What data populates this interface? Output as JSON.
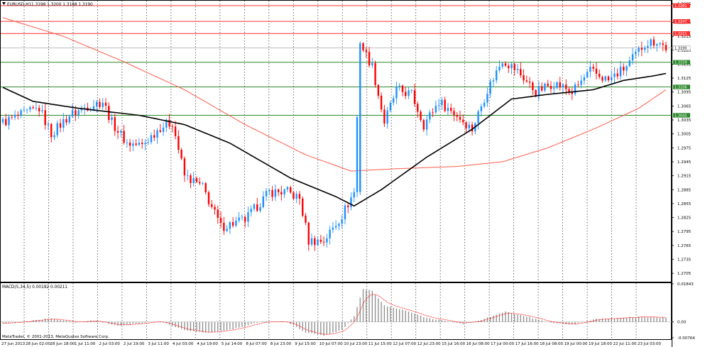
{
  "window": {
    "symbol_label": "EURUSD,H1",
    "ohlc_label": "1.3198 1.3200 1.3188 1.3190",
    "macd_label": "MACD(5,34,5) 0.00192 0.00211",
    "copyright": "MetaTrader, © 2001-2013, MetaQuotes Software Corp."
  },
  "colors": {
    "bull": "#1e90ff",
    "bear": "#ff0000",
    "ma_fast": "#000000",
    "ma_slow": "#ff5a4a",
    "resistance": "#ff3030",
    "support": "#2e8b2e",
    "current": "#c0c0c0",
    "histogram": "#8c8c8c",
    "signal": "#ff0000"
  },
  "chart_data": [
    {
      "type": "candlestick",
      "title": "EURUSD,H1",
      "ylim": [
        1.269,
        1.329
      ],
      "y_ticks": [
        "1.3285",
        "1.3245",
        "1.3215",
        "1.3185",
        "1.3155",
        "1.3125",
        "1.3095",
        "1.3065",
        "1.3035",
        "1.3005",
        "1.2975",
        "1.2945",
        "1.2915",
        "1.2885",
        "1.2855",
        "1.2825",
        "1.2795",
        "1.2765",
        "1.2735",
        "1.2705"
      ],
      "x_ticks": [
        "27 Jun 2013",
        "28 Jun 02:00",
        "28 Jun 18:00",
        "1 Jul 11:00",
        "2 Jul 03:00",
        "2 Jul 19:00",
        "3 Jul 11:00",
        "4 Jul 03:00",
        "4 Jul 19:00",
        "5 Jul 14:00",
        "8 Jul 07:00",
        "8 Jul 23:00",
        "9 Jul 15:00",
        "10 Jul 07:00",
        "10 Jul 23:00",
        "11 Jul 15:00",
        "12 Jul 07:00",
        "12 Jul 23:00",
        "15 Jul 16:00",
        "16 Jul 08:00",
        "17 Jul 00:00",
        "17 Jul 16:00",
        "18 Jul 08:00",
        "19 Jul 00:00",
        "19 Jul 18:00",
        "22 Jul 11:00",
        "23 Jul 03:00"
      ],
      "anchor_closes": [
        [
          0,
          1.303
        ],
        [
          12,
          1.306
        ],
        [
          16,
          1.3005
        ],
        [
          22,
          1.3045
        ],
        [
          28,
          1.3065
        ],
        [
          33,
          1.3075
        ],
        [
          36,
          1.303
        ],
        [
          41,
          1.2985
        ],
        [
          46,
          1.298
        ],
        [
          52,
          1.302
        ],
        [
          56,
          1.303
        ],
        [
          60,
          1.2915
        ],
        [
          66,
          1.289
        ],
        [
          72,
          1.2805
        ],
        [
          80,
          1.282
        ],
        [
          88,
          1.288
        ],
        [
          94,
          1.288
        ],
        [
          98,
          1.2865
        ],
        [
          101,
          1.2775
        ],
        [
          106,
          1.2775
        ],
        [
          112,
          1.283
        ],
        [
          116,
          1.288
        ],
        [
          118,
          1.32
        ],
        [
          122,
          1.315
        ],
        [
          126,
          1.303
        ],
        [
          130,
          1.31
        ],
        [
          135,
          1.309
        ],
        [
          139,
          1.3025
        ],
        [
          144,
          1.3075
        ],
        [
          150,
          1.3045
        ],
        [
          155,
          1.3015
        ],
        [
          160,
          1.31
        ],
        [
          165,
          1.3165
        ],
        [
          170,
          1.314
        ],
        [
          176,
          1.3095
        ],
        [
          182,
          1.3115
        ],
        [
          188,
          1.3095
        ],
        [
          194,
          1.314
        ],
        [
          200,
          1.312
        ],
        [
          206,
          1.315
        ],
        [
          212,
          1.32
        ],
        [
          216,
          1.3205
        ],
        [
          219,
          1.319
        ]
      ],
      "ma_fast": [
        [
          0,
          1.3105
        ],
        [
          10,
          1.3075
        ],
        [
          25,
          1.306
        ],
        [
          45,
          1.3045
        ],
        [
          60,
          1.3025
        ],
        [
          75,
          1.2985
        ],
        [
          95,
          1.291
        ],
        [
          110,
          1.287
        ],
        [
          116,
          1.285
        ],
        [
          125,
          1.2885
        ],
        [
          140,
          1.2955
        ],
        [
          155,
          1.3015
        ],
        [
          168,
          1.308
        ],
        [
          180,
          1.309
        ],
        [
          195,
          1.31
        ],
        [
          205,
          1.312
        ],
        [
          215,
          1.313
        ],
        [
          219,
          1.3135
        ]
      ],
      "ma_slow": [
        [
          0,
          1.3255
        ],
        [
          20,
          1.3215
        ],
        [
          40,
          1.316
        ],
        [
          60,
          1.31
        ],
        [
          80,
          1.3025
        ],
        [
          100,
          1.296
        ],
        [
          115,
          1.2925
        ],
        [
          130,
          1.293
        ],
        [
          150,
          1.2935
        ],
        [
          165,
          1.2945
        ],
        [
          180,
          1.2975
        ],
        [
          195,
          1.3015
        ],
        [
          210,
          1.306
        ],
        [
          219,
          1.31
        ]
      ],
      "levels": [
        {
          "price": 1.3281,
          "label": "1.3281",
          "kind": "resistance"
        },
        {
          "price": 1.3247,
          "label": "1.3247",
          "kind": "resistance"
        },
        {
          "price": 1.3221,
          "label": "1.3221",
          "kind": "resistance"
        },
        {
          "price": 1.319,
          "label": "1.3190",
          "kind": "current"
        },
        {
          "price": 1.3159,
          "label": "1.3159",
          "kind": "support"
        },
        {
          "price": 1.3106,
          "label": "1.3106",
          "kind": "support"
        },
        {
          "price": 1.3045,
          "label": "1.3045",
          "kind": "support"
        }
      ]
    },
    {
      "type": "bar",
      "title": "MACD(5,34,5) 0.00192 0.00211",
      "ylim": [
        -0.00764,
        0.01843
      ],
      "y_ticks": [
        "0.01843",
        "0.00",
        "-0.00764"
      ],
      "values_anchor": [
        [
          0,
          -0.0008
        ],
        [
          12,
          0.001
        ],
        [
          16,
          0.0016
        ],
        [
          24,
          -0.0002
        ],
        [
          30,
          0.0008
        ],
        [
          38,
          -0.0018
        ],
        [
          46,
          -0.0006
        ],
        [
          52,
          0.0004
        ],
        [
          60,
          -0.004
        ],
        [
          68,
          -0.0052
        ],
        [
          76,
          -0.0035
        ],
        [
          86,
          0.0004
        ],
        [
          94,
          0.0
        ],
        [
          100,
          -0.005
        ],
        [
          106,
          -0.0065
        ],
        [
          112,
          -0.004
        ],
        [
          116,
          0.003
        ],
        [
          119,
          0.016
        ],
        [
          122,
          0.015
        ],
        [
          126,
          0.008
        ],
        [
          132,
          0.006
        ],
        [
          140,
          0.002
        ],
        [
          146,
          0.0005
        ],
        [
          152,
          -0.0008
        ],
        [
          158,
          0.001
        ],
        [
          166,
          0.005
        ],
        [
          172,
          0.003
        ],
        [
          180,
          -0.0002
        ],
        [
          188,
          -0.0012
        ],
        [
          196,
          0.0015
        ],
        [
          204,
          0.002
        ],
        [
          212,
          0.0025
        ],
        [
          219,
          0.0019
        ]
      ]
    }
  ]
}
